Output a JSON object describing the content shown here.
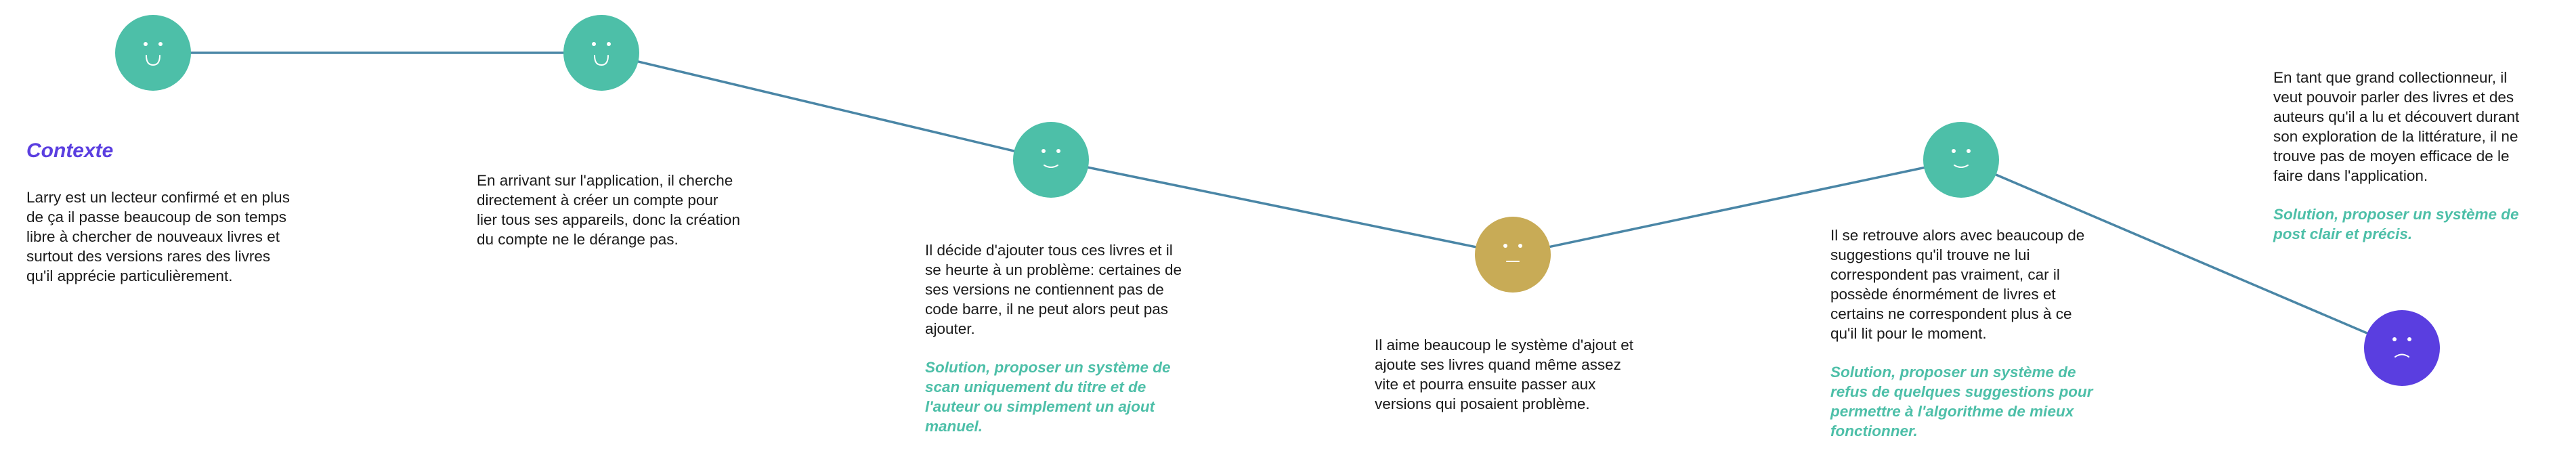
{
  "colors": {
    "line": "#4a86a6",
    "happy": "#4dbfa8",
    "neutral": "#c8ab56",
    "sad": "#5a3ee0",
    "solution_text": "#4dbfa8",
    "title": "#5a3ee0",
    "body_text": "#1a1a1a"
  },
  "faces": [
    {
      "name": "happy-face-icon",
      "mood": "happy"
    },
    {
      "name": "happy-face-icon",
      "mood": "happy"
    },
    {
      "name": "slight-smile-face-icon",
      "mood": "slight-smile"
    },
    {
      "name": "neutral-face-icon",
      "mood": "neutral"
    },
    {
      "name": "slight-smile-face-icon",
      "mood": "slight-smile"
    },
    {
      "name": "sad-face-icon",
      "mood": "sad"
    }
  ],
  "context": {
    "title": "Contexte",
    "text": "Larry est un lecteur confirmé et en plus de ça il passe beaucoup de son temps libre à chercher de nouveaux livres et surtout des versions rares des livres qu'il apprécie particulièrement."
  },
  "steps": [
    {
      "text": "En arrivant sur l'application, il cherche directement à créer un compte pour lier tous ses appareils, donc la création du compte ne le dérange pas.",
      "solution": ""
    },
    {
      "text": "Il décide d'ajouter tous ces livres et il se heurte à un problème: certaines de ses versions ne contiennent pas de code barre, il ne peut alors peut pas ajouter.",
      "solution": "Solution, proposer un système de scan uniquement du titre et de l'auteur ou simplement un ajout manuel."
    },
    {
      "text": "Il aime beaucoup le système d'ajout et ajoute ses livres quand même assez vite et pourra ensuite passer aux versions qui posaient problème.",
      "solution": ""
    },
    {
      "text": "Il se retrouve alors avec beaucoup de suggestions qu'il trouve ne lui correspondent pas vraiment, car il possède énormément de livres et certains ne correspondent plus à ce qu'il lit pour le moment.",
      "solution": "Solution, proposer un système de refus de quelques suggestions pour permettre à l'algorithme de mieux fonctionner."
    },
    {
      "text": "En tant que grand collectionneur, il veut pouvoir parler des livres et des auteurs qu'il a lu et découvert durant son exploration de la littérature, il ne trouve pas de moyen efficace de le faire dans l'application.",
      "solution": "Solution, proposer un système de post clair et précis."
    }
  ]
}
